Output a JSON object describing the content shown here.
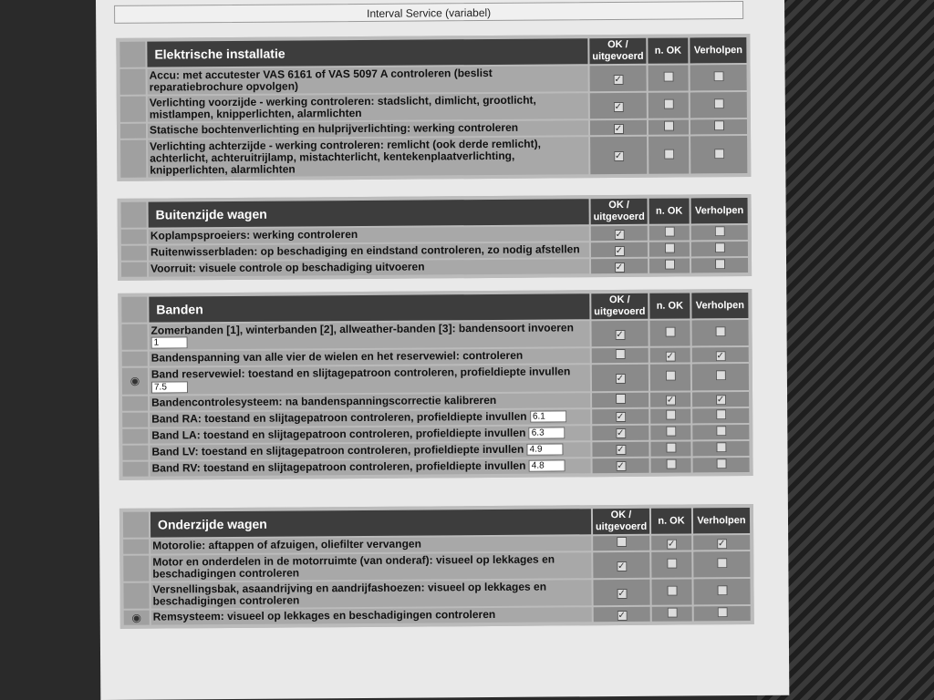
{
  "header": {
    "title": "Interval Service (variabel)"
  },
  "columns": {
    "ok": "OK / uitgevoerd",
    "nok": "n. OK",
    "fixed": "Verholpen"
  },
  "sections": [
    {
      "title": "Elektrische installatie",
      "rows": [
        {
          "text": "Accu: met accutester VAS 6161 of VAS 5097 A controleren (beslist reparatiebrochure opvolgen)",
          "checks": [
            true,
            false,
            false
          ]
        },
        {
          "text": "Verlichting voorzijde - werking controleren: stadslicht, dimlicht, grootlicht, mistlampen, knipperlichten, alarmlichten",
          "checks": [
            true,
            false,
            false
          ]
        },
        {
          "text": "Statische bochtenverlichting en hulprijverlichting: werking controleren",
          "checks": [
            true,
            false,
            false
          ]
        },
        {
          "text": "Verlichting achterzijde - werking controleren: remlicht (ook derde remlicht), achterlicht, achteruitrijlamp, mistachterlicht, kentekenplaatverlichting, knipperlichten, alarmlichten",
          "checks": [
            true,
            false,
            false
          ]
        }
      ]
    },
    {
      "title": "Buitenzijde wagen",
      "rows": [
        {
          "text": "Koplampsproeiers: werking controleren",
          "checks": [
            true,
            false,
            false
          ]
        },
        {
          "text": "Ruitenwisserbladen: op beschadiging en eindstand controleren, zo nodig afstellen",
          "checks": [
            true,
            false,
            false
          ]
        },
        {
          "text": "Voorruit: visuele controle op beschadiging uitvoeren",
          "checks": [
            true,
            false,
            false
          ]
        }
      ]
    },
    {
      "title": "Banden",
      "rows": [
        {
          "text": "Zomerbanden [1], winterbanden [2], allweather-banden [3]: bandensoort invoeren",
          "value": "1",
          "checks": [
            true,
            false,
            false
          ]
        },
        {
          "text": "Bandenspanning van alle vier de wielen en het reservewiel: controleren",
          "checks": [
            false,
            true,
            true
          ]
        },
        {
          "text": "Band reservewiel: toestand en slijtagepatroon controleren, profieldiepte invullen",
          "value": "7.5",
          "eye": true,
          "checks": [
            true,
            false,
            false
          ]
        },
        {
          "text": "Bandencontrolesysteem: na bandenspanningscorrectie kalibreren",
          "checks": [
            false,
            true,
            true
          ]
        },
        {
          "text": "Band RA: toestand en slijtagepatroon controleren, profieldiepte invullen",
          "value": "6.1",
          "inline": true,
          "checks": [
            true,
            false,
            false
          ]
        },
        {
          "text": "Band LA: toestand en slijtagepatroon controleren, profieldiepte invullen",
          "value": "6.3",
          "inline": true,
          "checks": [
            true,
            false,
            false
          ]
        },
        {
          "text": "Band LV: toestand en slijtagepatroon controleren, profieldiepte invullen",
          "value": "4.9",
          "inline": true,
          "checks": [
            true,
            false,
            false
          ]
        },
        {
          "text": "Band RV: toestand en slijtagepatroon controleren, profieldiepte invullen",
          "value": "4.8",
          "inline": true,
          "checks": [
            true,
            false,
            false
          ]
        }
      ]
    },
    {
      "title": "Onderzijde wagen",
      "rows": [
        {
          "text": "Motorolie: aftappen of afzuigen, oliefilter vervangen",
          "checks": [
            false,
            true,
            true
          ]
        },
        {
          "text": "Motor en onderdelen in de motorruimte (van onderaf): visueel op lekkages en beschadigingen controleren",
          "checks": [
            true,
            false,
            false
          ]
        },
        {
          "text": "Versnellingsbak, asaandrijving en aandrijfashoezen: visueel op lekkages en beschadigingen controleren",
          "checks": [
            true,
            false,
            false
          ]
        },
        {
          "text": "Remsysteem: visueel op lekkages en beschadigingen controleren",
          "eye": true,
          "checks": [
            true,
            false,
            false
          ]
        }
      ]
    }
  ]
}
